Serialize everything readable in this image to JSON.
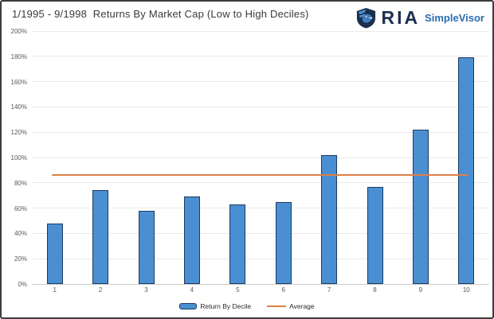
{
  "header": {
    "title": "1/1995 - 9/1998  Returns By Market Cap (Low to High Deciles)",
    "logo": {
      "brand": "RIA",
      "product": "SimpleVisor",
      "icon": "ria-shield-icon",
      "brand_color": "#1b2f4e",
      "product_color": "#2b6cb0"
    }
  },
  "chart_data": {
    "type": "bar",
    "title": "1/1995 - 9/1998  Returns By Market Cap (Low to High Deciles)",
    "categories": [
      "1",
      "2",
      "3",
      "4",
      "5",
      "6",
      "7",
      "8",
      "9",
      "10"
    ],
    "series": [
      {
        "name": "Return By Decile",
        "type": "bar",
        "values": [
          48,
          74,
          58,
          69,
          63,
          65,
          102,
          77,
          122,
          179
        ],
        "fill_color": "#4a8fd1",
        "border_color": "#1d3a5f"
      },
      {
        "name": "Average",
        "type": "line",
        "value": 86,
        "color": "#dd8047"
      }
    ],
    "xlabel": "",
    "ylabel": "",
    "ylim": [
      0,
      200
    ],
    "ytick_step": 20,
    "ytick_labels": [
      "200%",
      "180%",
      "160%",
      "140%",
      "120%",
      "100%",
      "80%",
      "60%",
      "40%",
      "20%",
      "0%"
    ],
    "grid": true,
    "legend_position": "bottom"
  },
  "legend": {
    "items": [
      {
        "label": "Return By Decile",
        "marker": "bar-swatch",
        "fill": "#4a8fd1",
        "border": "#1d3a5f"
      },
      {
        "label": "Average",
        "marker": "line-swatch",
        "color": "#dd8047"
      }
    ]
  },
  "colors": {
    "gridline": "#e9e9e9",
    "axis_text": "#595959",
    "title_text": "#3a3a3a",
    "panel_border": "#3c3c3c"
  }
}
